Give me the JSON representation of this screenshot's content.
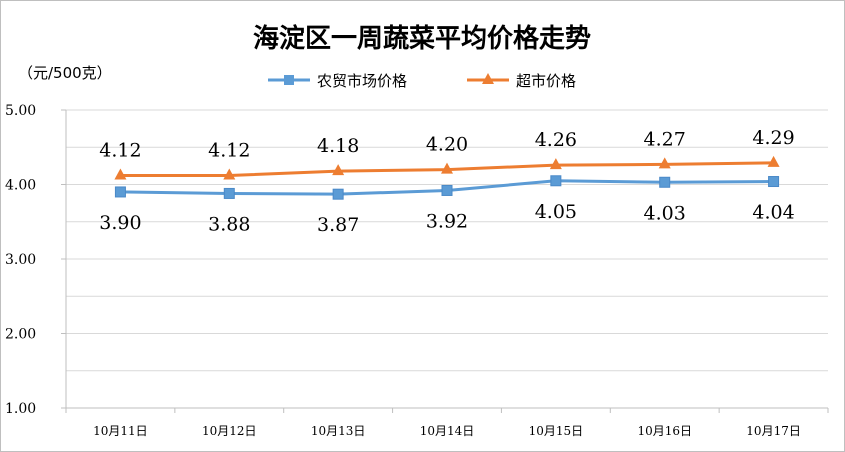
{
  "chart_data": {
    "type": "line",
    "title": "海淀区一周蔬菜平均价格走势",
    "ylabel": "（元/500克）",
    "ylim": [
      1.0,
      5.0
    ],
    "ytick_labels": [
      "1.00",
      "2.00",
      "3.00",
      "4.00",
      "5.00"
    ],
    "categories": [
      "10月11日",
      "10月12日",
      "10月13日",
      "10月14日",
      "10月15日",
      "10月16日",
      "10月17日"
    ],
    "grid": true,
    "legend_position": "top-center",
    "series": [
      {
        "name": "农贸市场价格",
        "color": "#5b9bd5",
        "marker": "square",
        "values": [
          3.9,
          3.88,
          3.87,
          3.92,
          4.05,
          4.03,
          4.04
        ],
        "labels": [
          "3.90",
          "3.88",
          "3.87",
          "3.92",
          "4.05",
          "4.03",
          "4.04"
        ]
      },
      {
        "name": "超市价格",
        "color": "#ed7d31",
        "marker": "triangle",
        "values": [
          4.12,
          4.12,
          4.18,
          4.2,
          4.26,
          4.27,
          4.29
        ],
        "labels": [
          "4.12",
          "4.12",
          "4.18",
          "4.20",
          "4.26",
          "4.27",
          "4.29"
        ]
      }
    ]
  }
}
